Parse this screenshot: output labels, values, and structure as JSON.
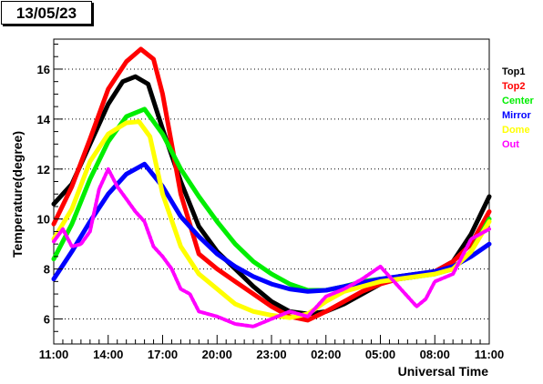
{
  "date_label": "13/05/23",
  "chart_data": {
    "type": "scatter",
    "title": "",
    "xlabel": "Universal Time",
    "ylabel": "Temperature(degree)",
    "x_ticks": [
      "11:00",
      "14:00",
      "17:00",
      "20:00",
      "23:00",
      "02:00",
      "05:00",
      "08:00",
      "11:00"
    ],
    "y_ticks": [
      6,
      8,
      10,
      12,
      14,
      16
    ],
    "x_range_hours": [
      0,
      24
    ],
    "ylim": [
      5,
      17.2
    ],
    "grid": "horizontal dotted",
    "legend_position": "right",
    "series": [
      {
        "name": "Top1",
        "color": "#000000",
        "points": [
          [
            0,
            10.6
          ],
          [
            1,
            11.4
          ],
          [
            2,
            13.0
          ],
          [
            3,
            14.6
          ],
          [
            3.8,
            15.5
          ],
          [
            4.5,
            15.7
          ],
          [
            5.2,
            15.4
          ],
          [
            6,
            13.6
          ],
          [
            7,
            11.5
          ],
          [
            8,
            9.7
          ],
          [
            9,
            8.7
          ],
          [
            10,
            8.0
          ],
          [
            11,
            7.3
          ],
          [
            12,
            6.7
          ],
          [
            13,
            6.3
          ],
          [
            14,
            6.2
          ],
          [
            15,
            6.3
          ],
          [
            16,
            6.6
          ],
          [
            17,
            7.0
          ],
          [
            18,
            7.4
          ],
          [
            19,
            7.7
          ],
          [
            20,
            7.8
          ],
          [
            21,
            7.9
          ],
          [
            22,
            8.3
          ],
          [
            23,
            9.4
          ],
          [
            24,
            10.9
          ]
        ]
      },
      {
        "name": "Top2",
        "color": "#ff0000",
        "points": [
          [
            0,
            9.8
          ],
          [
            1,
            11.3
          ],
          [
            2,
            13.2
          ],
          [
            3,
            15.2
          ],
          [
            4,
            16.3
          ],
          [
            4.8,
            16.8
          ],
          [
            5.5,
            16.4
          ],
          [
            6,
            15.0
          ],
          [
            7,
            11.0
          ],
          [
            8,
            8.6
          ],
          [
            9,
            8.0
          ],
          [
            10,
            7.5
          ],
          [
            11,
            7.0
          ],
          [
            12,
            6.5
          ],
          [
            13,
            6.1
          ],
          [
            14,
            5.95
          ],
          [
            15,
            6.3
          ],
          [
            16,
            6.7
          ],
          [
            17,
            7.1
          ],
          [
            18,
            7.4
          ],
          [
            19,
            7.6
          ],
          [
            20,
            7.7
          ],
          [
            21,
            7.9
          ],
          [
            22,
            8.3
          ],
          [
            23,
            9.0
          ],
          [
            24,
            10.3
          ]
        ]
      },
      {
        "name": "Center",
        "color": "#00ee00",
        "points": [
          [
            0,
            8.4
          ],
          [
            1,
            9.8
          ],
          [
            2,
            11.6
          ],
          [
            3,
            13.1
          ],
          [
            4,
            14.1
          ],
          [
            5,
            14.4
          ],
          [
            6,
            13.4
          ],
          [
            7,
            12.0
          ],
          [
            8,
            10.9
          ],
          [
            9,
            9.9
          ],
          [
            10,
            9.0
          ],
          [
            11,
            8.3
          ],
          [
            12,
            7.8
          ],
          [
            13,
            7.4
          ],
          [
            14,
            7.15
          ],
          [
            15,
            7.15
          ],
          [
            16,
            7.3
          ],
          [
            17,
            7.5
          ],
          [
            18,
            7.6
          ],
          [
            19,
            7.6
          ],
          [
            20,
            7.7
          ],
          [
            21,
            7.8
          ],
          [
            22,
            8.0
          ],
          [
            23,
            8.7
          ],
          [
            24,
            10.0
          ]
        ]
      },
      {
        "name": "Mirror",
        "color": "#0000ff",
        "points": [
          [
            0,
            7.6
          ],
          [
            1,
            8.7
          ],
          [
            2,
            9.9
          ],
          [
            3,
            11.0
          ],
          [
            4,
            11.8
          ],
          [
            5,
            12.2
          ],
          [
            6,
            11.3
          ],
          [
            7,
            10.1
          ],
          [
            8,
            9.3
          ],
          [
            9,
            8.6
          ],
          [
            10,
            8.1
          ],
          [
            11,
            7.7
          ],
          [
            12,
            7.4
          ],
          [
            13,
            7.2
          ],
          [
            14,
            7.1
          ],
          [
            15,
            7.15
          ],
          [
            16,
            7.3
          ],
          [
            17,
            7.45
          ],
          [
            18,
            7.6
          ],
          [
            19,
            7.7
          ],
          [
            20,
            7.8
          ],
          [
            21,
            7.9
          ],
          [
            22,
            8.1
          ],
          [
            23,
            8.5
          ],
          [
            24,
            9.0
          ]
        ]
      },
      {
        "name": "Dome",
        "color": "#ffff00",
        "points": [
          [
            0,
            9.2
          ],
          [
            1,
            10.4
          ],
          [
            2,
            12.3
          ],
          [
            3,
            13.4
          ],
          [
            4,
            13.85
          ],
          [
            4.7,
            13.9
          ],
          [
            5.3,
            13.3
          ],
          [
            6,
            11.0
          ],
          [
            7,
            8.9
          ],
          [
            8,
            7.8
          ],
          [
            9,
            7.2
          ],
          [
            10,
            6.6
          ],
          [
            11,
            6.3
          ],
          [
            12,
            6.15
          ],
          [
            13,
            6.05
          ],
          [
            14,
            6.2
          ],
          [
            15,
            6.7
          ],
          [
            16,
            7.1
          ],
          [
            17,
            7.3
          ],
          [
            18,
            7.5
          ],
          [
            19,
            7.6
          ],
          [
            20,
            7.7
          ],
          [
            21,
            7.8
          ],
          [
            22,
            8.0
          ],
          [
            23,
            8.7
          ],
          [
            24,
            9.9
          ]
        ]
      },
      {
        "name": "Out",
        "color": "#ff00ff",
        "points": [
          [
            0,
            9.1
          ],
          [
            0.5,
            9.6
          ],
          [
            1,
            8.9
          ],
          [
            1.5,
            9.0
          ],
          [
            2,
            9.5
          ],
          [
            2.5,
            11.2
          ],
          [
            3,
            12.0
          ],
          [
            3.5,
            11.3
          ],
          [
            4,
            10.8
          ],
          [
            4.5,
            10.3
          ],
          [
            5,
            9.9
          ],
          [
            5.5,
            8.9
          ],
          [
            6,
            8.5
          ],
          [
            6.5,
            8.0
          ],
          [
            7,
            7.2
          ],
          [
            7.5,
            7.0
          ],
          [
            8,
            6.3
          ],
          [
            9,
            6.1
          ],
          [
            10,
            5.8
          ],
          [
            11,
            5.7
          ],
          [
            12,
            6.0
          ],
          [
            13,
            6.3
          ],
          [
            14,
            6.1
          ],
          [
            15,
            6.9
          ],
          [
            16,
            7.2
          ],
          [
            17,
            7.6
          ],
          [
            18,
            8.1
          ],
          [
            19,
            7.3
          ],
          [
            20,
            6.5
          ],
          [
            20.5,
            6.8
          ],
          [
            21,
            7.5
          ],
          [
            22,
            7.8
          ],
          [
            23,
            9.2
          ],
          [
            24,
            9.6
          ]
        ]
      }
    ]
  }
}
